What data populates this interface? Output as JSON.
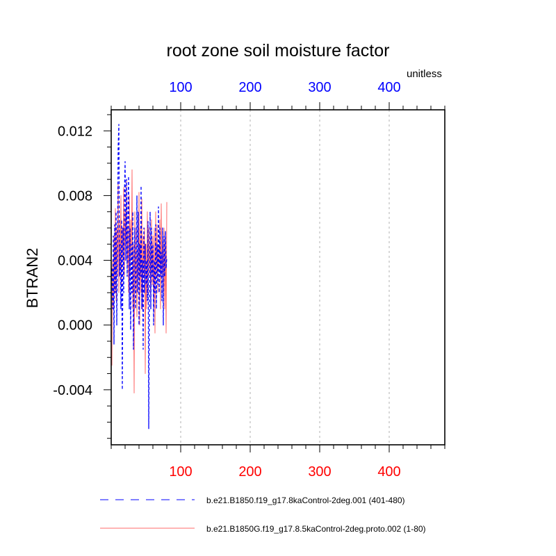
{
  "chart_data": {
    "type": "line",
    "title": "root zone soil moisture factor",
    "ylabel": "BTRAN2",
    "units_label": "unitless",
    "xlim": [
      0,
      480
    ],
    "ylim": [
      -0.0074,
      0.0133
    ],
    "y_ticks": [
      "-0.004",
      "0.000",
      "0.004",
      "0.008",
      "0.012"
    ],
    "y_tick_values": [
      -0.004,
      0.0,
      0.004,
      0.008,
      0.012
    ],
    "x_ticks_bottom": [
      "100",
      "200",
      "300",
      "400"
    ],
    "x_ticks_top": [
      "100",
      "200",
      "300",
      "400"
    ],
    "x_tick_values": [
      100,
      200,
      300,
      400
    ],
    "bottom_axis_color": "#ff0000",
    "top_axis_color": "#0000ff",
    "grid": "vertical dashed at major x ticks",
    "legend_position": "bottom",
    "series": [
      {
        "name": "b.e21.B1850.f19_g17.8kaControl-2deg.001 (401-480)",
        "color": "#0000ff",
        "style": "dashed",
        "x": [
          1,
          2,
          3,
          4,
          5,
          6,
          7,
          8,
          9,
          10,
          11,
          12,
          13,
          14,
          15,
          16,
          17,
          18,
          19,
          20,
          21,
          22,
          23,
          24,
          25,
          26,
          27,
          28,
          29,
          30,
          31,
          32,
          33,
          34,
          35,
          36,
          37,
          38,
          39,
          40,
          41,
          42,
          43,
          44,
          45,
          46,
          47,
          48,
          49,
          50,
          51,
          52,
          53,
          54,
          55,
          56,
          57,
          58,
          59,
          60,
          61,
          62,
          63,
          64,
          65,
          66,
          67,
          68,
          69,
          70,
          71,
          72,
          73,
          74,
          75,
          76,
          77,
          78,
          79,
          80
        ],
        "values": [
          0.0035,
          0.001,
          0.0055,
          -0.0012,
          0.0062,
          0.002,
          0.007,
          0.0,
          0.0045,
          0.011,
          0.0124,
          0.003,
          0.005,
          0.001,
          0.0065,
          -0.004,
          0.006,
          0.002,
          0.008,
          0.0101,
          0.004,
          0.009,
          0.003,
          0.007,
          0.0092,
          0.001,
          0.006,
          -0.0003,
          0.005,
          0.002,
          0.007,
          -0.0015,
          0.004,
          0.006,
          0.001,
          0.003,
          0.008,
          0.002,
          0.007,
          0.0,
          0.005,
          0.003,
          0.0086,
          0.001,
          0.004,
          -0.0015,
          0.006,
          0.002,
          0.005,
          0.0025,
          0.004,
          0.0015,
          0.0064,
          -0.0064,
          0.002,
          0.007,
          0.001,
          0.006,
          0.003,
          0.005,
          0.0,
          0.004,
          0.002,
          0.0062,
          0.001,
          0.005,
          0.0025,
          0.0073,
          0.002,
          0.006,
          0.003,
          0.0045,
          0.0015,
          0.006,
          0.0,
          0.0055,
          0.003,
          0.0058,
          0.0035,
          0.0042
        ]
      },
      {
        "name": "b.e21.B1850G.f19_g17.8.5kaControl-2deg.proto.002 (1-80)",
        "color": "#ff6a6a",
        "style": "solid",
        "x": [
          1,
          2,
          3,
          4,
          5,
          6,
          7,
          8,
          9,
          10,
          11,
          12,
          13,
          14,
          15,
          16,
          17,
          18,
          19,
          20,
          21,
          22,
          23,
          24,
          25,
          26,
          27,
          28,
          29,
          30,
          31,
          32,
          33,
          34,
          35,
          36,
          37,
          38,
          39,
          40,
          41,
          42,
          43,
          44,
          45,
          46,
          47,
          48,
          49,
          50,
          51,
          52,
          53,
          54,
          55,
          56,
          57,
          58,
          59,
          60,
          61,
          62,
          63,
          64,
          65,
          66,
          67,
          68,
          69,
          70,
          71,
          72,
          73,
          74,
          75,
          76,
          77,
          78,
          79,
          80
        ],
        "values": [
          -0.0025,
          0.004,
          0.001,
          0.0055,
          0.002,
          0.0072,
          0.0015,
          0.006,
          0.003,
          0.0087,
          0.002,
          0.0065,
          0.0035,
          0.008,
          0.0025,
          0.006,
          0.004,
          0.0085,
          0.003,
          0.007,
          0.0045,
          0.009,
          0.0035,
          0.006,
          0.002,
          0.008,
          0.003,
          0.0065,
          0.004,
          0.0096,
          0.001,
          0.005,
          -0.0042,
          0.007,
          0.002,
          0.006,
          0.0005,
          0.0045,
          0.003,
          0.0082,
          0.0,
          0.006,
          0.002,
          0.0078,
          0.001,
          0.0055,
          0.003,
          0.006,
          -0.003,
          0.005,
          0.001,
          0.007,
          0.002,
          0.006,
          0.003,
          0.005,
          0.0015,
          0.0065,
          0.0025,
          0.0055,
          0.001,
          0.006,
          -0.0005,
          0.007,
          0.003,
          0.0062,
          0.002,
          0.005,
          0.0035,
          0.0065,
          0.001,
          0.0075,
          0.003,
          0.0055,
          0.002,
          0.006,
          0.001,
          0.0058,
          -0.0005,
          0.0076
        ]
      }
    ]
  }
}
